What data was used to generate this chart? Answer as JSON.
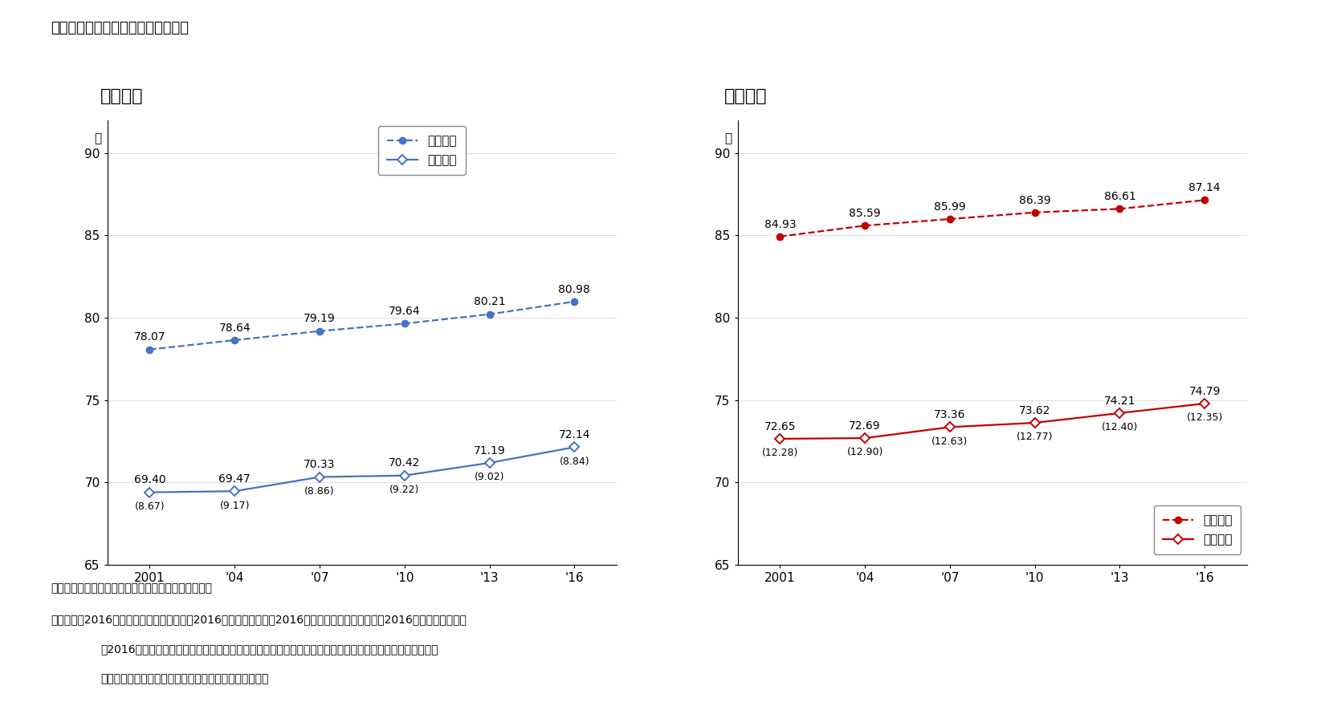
{
  "title": "図表１　平均寿命と健康寿命の推移",
  "male_label": "【男性】",
  "female_label": "【女性】",
  "years": [
    2001,
    2004,
    2007,
    2010,
    2013,
    2016
  ],
  "year_labels": [
    "2001",
    "'04",
    "'07",
    "'10",
    "'13",
    "'16"
  ],
  "male_avg_life": [
    78.07,
    78.64,
    79.19,
    79.64,
    80.21,
    80.98
  ],
  "male_health_life": [
    69.4,
    69.47,
    70.33,
    70.42,
    71.19,
    72.14
  ],
  "male_diff": [
    "(8.67)",
    "(9.17)",
    "(8.86)",
    "(9.22)",
    "(9.02)",
    "(8.84)"
  ],
  "female_avg_life": [
    84.93,
    85.59,
    85.99,
    86.39,
    86.61,
    87.14
  ],
  "female_health_life": [
    72.65,
    72.69,
    73.36,
    73.62,
    74.21,
    74.79
  ],
  "female_diff": [
    "(12.28)",
    "(12.90)",
    "(12.63)",
    "(12.77)",
    "(12.40)",
    "(12.35)"
  ],
  "blue_color": "#4472C4",
  "red_color": "#C00000",
  "legend_avg": "平均寿命",
  "legend_health": "健康寿命",
  "ylim": [
    65,
    92
  ],
  "yticks": [
    65,
    70,
    75,
    80,
    85,
    90
  ],
  "ylabel_text": "年",
  "note_line1": "（注）（　）内の数値は、平均寿命と健康寿命の差。",
  "note_line2": "（資料）　2016年平均寿命は厚生労働省「2016年簡易生命表」　2016年健康寿命は厚生労働省「2016年簡易生命表」と",
  "note_line3": "「2016年国民生活基瞐調査」を使って、厚生労働科学研究「健康寿命における将来予測と生活習慣病対策の",
  "note_line4": "費用対効果に関する研究」による計算法で筆者が計算。"
}
